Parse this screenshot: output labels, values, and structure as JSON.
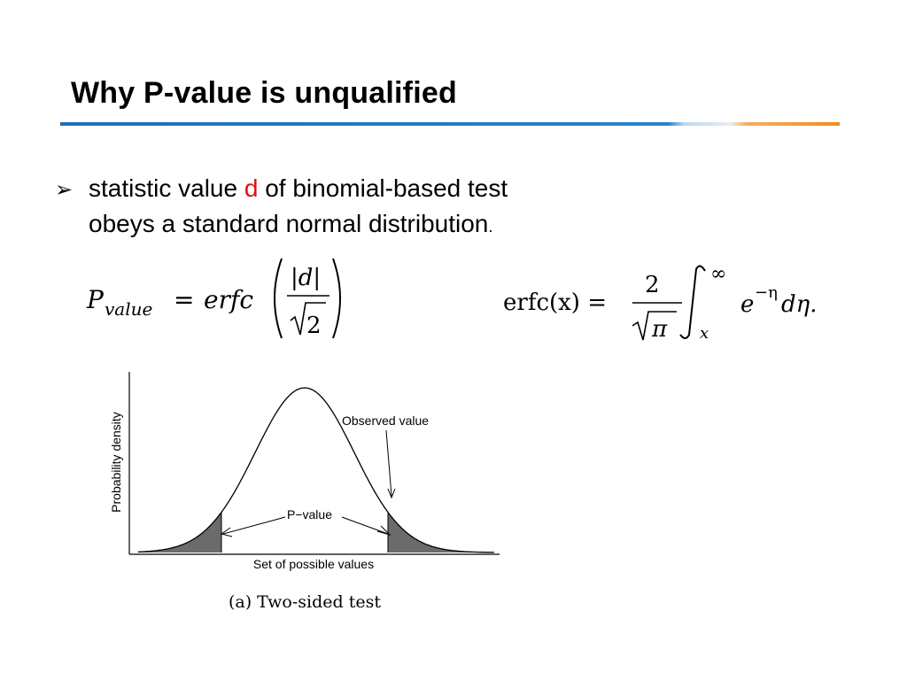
{
  "slide": {
    "title": "Why P-value is unqualified",
    "colors": {
      "rule_blue": "#1f6fb4",
      "rule_orange": "#f08c1c",
      "highlight": "#e01010"
    }
  },
  "bullet": {
    "icon": "arrow-bullet-icon",
    "marker": "➢",
    "line1_pre": "statistic value ",
    "line1_highlight": "d",
    "line1_post": " of binomial-based test",
    "line2": "obeys a standard normal distribution",
    "line2_end": "."
  },
  "formula_left": {
    "p": "P",
    "subscript": "value",
    "equals": "=",
    "func": "erfc",
    "numerator": "|d|",
    "denominator": "2"
  },
  "formula_right": {
    "lhs": "erfc(x) =",
    "numerator": "2",
    "denominator": "π",
    "upper_limit": "∞",
    "lower_limit": "x",
    "integrand_base": "e",
    "integrand_exp": "−η",
    "differential": "dη."
  },
  "chart_data": {
    "type": "area",
    "distribution": "standard-normal",
    "xlabel": "Set of possible values",
    "ylabel": "Probability density",
    "annotations": [
      "Observed value",
      "P−value"
    ],
    "caption": "(a) Two-sided test",
    "shaded_regions": [
      "left-tail",
      "right-tail"
    ],
    "grid": false
  }
}
